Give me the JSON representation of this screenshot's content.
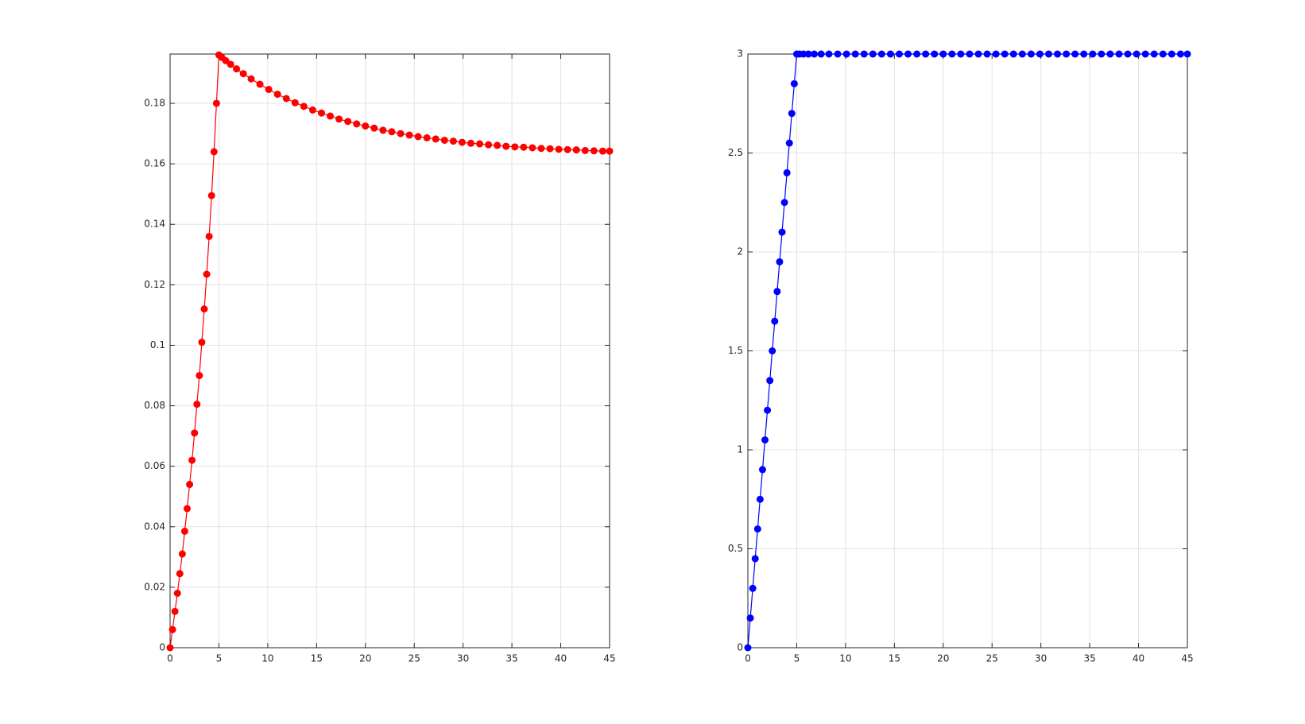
{
  "chart_data": [
    {
      "type": "line",
      "grid": true,
      "x": [
        0,
        0.25,
        0.5,
        0.75,
        1,
        1.25,
        1.5,
        1.75,
        2,
        2.25,
        2.5,
        2.75,
        3,
        3.25,
        3.5,
        3.75,
        4,
        4.25,
        4.5,
        4.75,
        5,
        5.3,
        5.7,
        6.2,
        6.8,
        7.5,
        8.3,
        9.2,
        10.1,
        11,
        11.9,
        12.8,
        13.7,
        14.6,
        15.5,
        16.4,
        17.3,
        18.2,
        19.1,
        20,
        20.9,
        21.8,
        22.7,
        23.6,
        24.5,
        25.4,
        26.3,
        27.2,
        28.1,
        29,
        29.9,
        30.8,
        31.7,
        32.6,
        33.5,
        34.4,
        35.3,
        36.2,
        37.1,
        38,
        38.9,
        39.8,
        40.7,
        41.6,
        42.5,
        43.4,
        44.3,
        45
      ],
      "series": [
        {
          "color": "#ff0000",
          "values": [
            0,
            0.006,
            0.012,
            0.018,
            0.0245,
            0.031,
            0.0385,
            0.046,
            0.054,
            0.062,
            0.071,
            0.0805,
            0.09,
            0.101,
            0.112,
            0.1235,
            0.136,
            0.1495,
            0.164,
            0.18,
            0.196,
            0.1952,
            0.1941,
            0.1929,
            0.1914,
            0.1898,
            0.1881,
            0.1863,
            0.1846,
            0.183,
            0.1816,
            0.1802,
            0.179,
            0.1778,
            0.1768,
            0.1758,
            0.1748,
            0.174,
            0.1732,
            0.1725,
            0.1718,
            0.1711,
            0.1706,
            0.17,
            0.1695,
            0.169,
            0.1686,
            0.1682,
            0.1678,
            0.1675,
            0.1671,
            0.1668,
            0.1666,
            0.1663,
            0.1661,
            0.1658,
            0.1656,
            0.1655,
            0.1653,
            0.1651,
            0.165,
            0.1648,
            0.1647,
            0.1646,
            0.1644,
            0.1643,
            0.1642,
            0.1642
          ]
        }
      ],
      "xlim": [
        0,
        45
      ],
      "ylim": [
        0,
        0.1963
      ],
      "xticks": [
        0,
        5,
        10,
        15,
        20,
        25,
        30,
        35,
        40,
        45
      ],
      "yticks": [
        0,
        0.02,
        0.04,
        0.06,
        0.08,
        0.1,
        0.12,
        0.14,
        0.16,
        0.18
      ]
    },
    {
      "type": "line",
      "grid": true,
      "x": [
        0,
        0.25,
        0.5,
        0.75,
        1,
        1.25,
        1.5,
        1.75,
        2,
        2.25,
        2.5,
        2.75,
        3,
        3.25,
        3.5,
        3.75,
        4,
        4.25,
        4.5,
        4.75,
        5,
        5.3,
        5.7,
        6.2,
        6.8,
        7.5,
        8.3,
        9.2,
        10.1,
        11,
        11.9,
        12.8,
        13.7,
        14.6,
        15.5,
        16.4,
        17.3,
        18.2,
        19.1,
        20,
        20.9,
        21.8,
        22.7,
        23.6,
        24.5,
        25.4,
        26.3,
        27.2,
        28.1,
        29,
        29.9,
        30.8,
        31.7,
        32.6,
        33.5,
        34.4,
        35.3,
        36.2,
        37.1,
        38,
        38.9,
        39.8,
        40.7,
        41.6,
        42.5,
        43.4,
        44.3,
        45
      ],
      "series": [
        {
          "color": "#0000ff",
          "values": [
            0,
            0.15,
            0.3,
            0.45,
            0.6,
            0.75,
            0.9,
            1.05,
            1.2,
            1.35,
            1.5,
            1.65,
            1.8,
            1.95,
            2.1,
            2.25,
            2.4,
            2.55,
            2.7,
            2.85,
            3,
            3,
            3,
            3,
            3,
            3,
            3,
            3,
            3,
            3,
            3,
            3,
            3,
            3,
            3,
            3,
            3,
            3,
            3,
            3,
            3,
            3,
            3,
            3,
            3,
            3,
            3,
            3,
            3,
            3,
            3,
            3,
            3,
            3,
            3,
            3,
            3,
            3,
            3,
            3,
            3,
            3,
            3,
            3,
            3,
            3,
            3,
            3
          ]
        }
      ],
      "xlim": [
        0,
        45
      ],
      "ylim": [
        0,
        3
      ],
      "xticks": [
        0,
        5,
        10,
        15,
        20,
        25,
        30,
        35,
        40,
        45
      ],
      "yticks": [
        0,
        0.5,
        1,
        1.5,
        2,
        2.5,
        3
      ]
    }
  ]
}
